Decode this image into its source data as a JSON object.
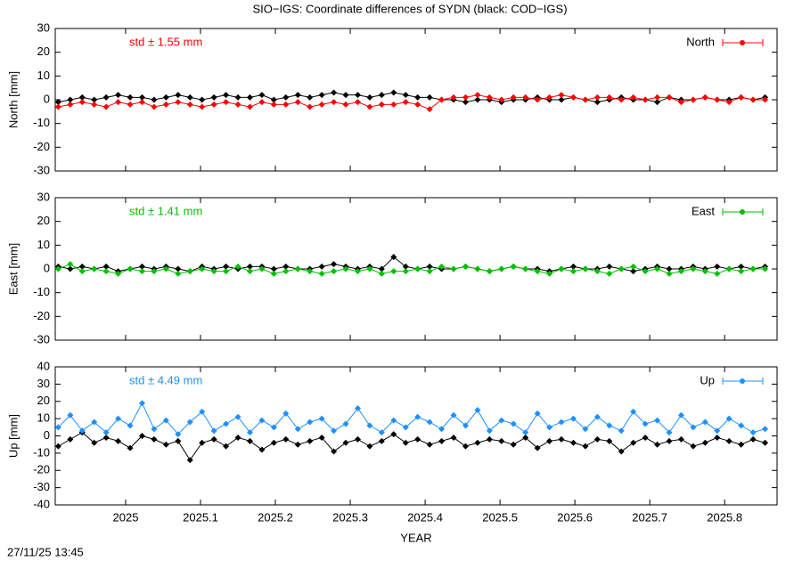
{
  "title": "SIO−IGS: Coordinate differences of SYDN (black: COD−IGS)",
  "footer": "27/11/25 13:45",
  "chart_data": [
    {
      "type": "line",
      "ylabel": "North [mm]",
      "annotation": "std ± 1.55 mm",
      "annotation_color": "#ff0000",
      "legend": "top-right",
      "xlim": [
        2024.906,
        2025.87
      ],
      "ylim": [
        -30,
        30
      ],
      "yticks": [
        -30,
        -20,
        -10,
        0,
        10,
        20,
        30
      ],
      "x": [
        2024.91,
        2024.926,
        2024.942,
        2024.958,
        2024.974,
        2024.99,
        2025.006,
        2025.022,
        2025.038,
        2025.054,
        2025.07,
        2025.086,
        2025.102,
        2025.118,
        2025.134,
        2025.15,
        2025.166,
        2025.182,
        2025.198,
        2025.214,
        2025.23,
        2025.246,
        2025.262,
        2025.278,
        2025.294,
        2025.31,
        2025.326,
        2025.342,
        2025.358,
        2025.374,
        2025.39,
        2025.406,
        2025.422,
        2025.438,
        2025.454,
        2025.47,
        2025.486,
        2025.502,
        2025.518,
        2025.534,
        2025.55,
        2025.566,
        2025.582,
        2025.598,
        2025.614,
        2025.63,
        2025.646,
        2025.662,
        2025.678,
        2025.694,
        2025.71,
        2025.726,
        2025.742,
        2025.758,
        2025.774,
        2025.79,
        2025.806,
        2025.822,
        2025.838,
        2025.854
      ],
      "series": [
        {
          "color": "#000000",
          "values": [
            -1,
            0,
            1,
            0,
            1,
            2,
            1,
            1,
            0,
            1,
            2,
            1,
            0,
            1,
            2,
            1,
            1,
            2,
            0,
            1,
            2,
            1,
            2,
            3,
            2,
            2,
            1,
            2,
            3,
            2,
            1,
            1,
            0,
            0,
            -1,
            0,
            0,
            -1,
            0,
            0,
            1,
            0,
            0,
            1,
            0,
            -1,
            0,
            1,
            0,
            0,
            -1,
            1,
            0,
            0,
            1,
            0,
            0,
            1,
            0,
            1
          ]
        },
        {
          "name": "North",
          "color": "#ff0000",
          "values": [
            -3,
            -2,
            -1,
            -2,
            -3,
            -1,
            -2,
            -1,
            -3,
            -2,
            -1,
            -2,
            -3,
            -2,
            -1,
            -2,
            -3,
            -1,
            -2,
            -2,
            -1,
            -3,
            -2,
            -1,
            -2,
            -1,
            -3,
            -2,
            -2,
            -1,
            -2,
            -4,
            0,
            1,
            1,
            2,
            1,
            0,
            1,
            1,
            0,
            1,
            2,
            1,
            0,
            1,
            1,
            0,
            1,
            0,
            1,
            1,
            -1,
            0,
            1,
            0,
            -1,
            1,
            0,
            0
          ]
        }
      ]
    },
    {
      "type": "line",
      "ylabel": "East [mm]",
      "annotation": "std ± 1.41 mm",
      "annotation_color": "#00c000",
      "legend": "top-right",
      "xlim": [
        2024.906,
        2025.87
      ],
      "ylim": [
        -30,
        30
      ],
      "yticks": [
        -30,
        -20,
        -10,
        0,
        10,
        20,
        30
      ],
      "x": [
        2024.91,
        2024.926,
        2024.942,
        2024.958,
        2024.974,
        2024.99,
        2025.006,
        2025.022,
        2025.038,
        2025.054,
        2025.07,
        2025.086,
        2025.102,
        2025.118,
        2025.134,
        2025.15,
        2025.166,
        2025.182,
        2025.198,
        2025.214,
        2025.23,
        2025.246,
        2025.262,
        2025.278,
        2025.294,
        2025.31,
        2025.326,
        2025.342,
        2025.358,
        2025.374,
        2025.39,
        2025.406,
        2025.422,
        2025.438,
        2025.454,
        2025.47,
        2025.486,
        2025.502,
        2025.518,
        2025.534,
        2025.55,
        2025.566,
        2025.582,
        2025.598,
        2025.614,
        2025.63,
        2025.646,
        2025.662,
        2025.678,
        2025.694,
        2025.71,
        2025.726,
        2025.742,
        2025.758,
        2025.774,
        2025.79,
        2025.806,
        2025.822,
        2025.838,
        2025.854
      ],
      "series": [
        {
          "color": "#000000",
          "values": [
            1,
            0,
            1,
            0,
            1,
            -1,
            0,
            1,
            0,
            1,
            0,
            -1,
            1,
            0,
            1,
            0,
            1,
            1,
            0,
            1,
            0,
            0,
            1,
            2,
            1,
            0,
            1,
            0,
            5,
            1,
            0,
            1,
            0,
            0,
            1,
            0,
            -1,
            0,
            1,
            0,
            0,
            -1,
            0,
            1,
            0,
            0,
            1,
            0,
            -1,
            0,
            1,
            0,
            0,
            1,
            0,
            1,
            0,
            1,
            0,
            1
          ]
        },
        {
          "name": "East",
          "color": "#00c000",
          "values": [
            0,
            2,
            -1,
            0,
            -1,
            -2,
            0,
            -1,
            -1,
            0,
            -2,
            -1,
            0,
            -1,
            -1,
            1,
            -1,
            0,
            -2,
            -1,
            0,
            -1,
            -2,
            -1,
            0,
            -1,
            0,
            -2,
            -1,
            -1,
            0,
            -1,
            1,
            0,
            1,
            0,
            -1,
            0,
            1,
            0,
            -1,
            -2,
            0,
            -1,
            0,
            -1,
            -2,
            0,
            1,
            -1,
            0,
            -2,
            -1,
            0,
            -1,
            -2,
            0,
            -1,
            0,
            0
          ]
        }
      ]
    },
    {
      "type": "line",
      "ylabel": "Up [mm]",
      "xlabel": "YEAR",
      "annotation": "std ± 4.49 mm",
      "annotation_color": "#1e90ff",
      "legend": "top-right",
      "xlim": [
        2024.906,
        2025.87
      ],
      "ylim": [
        -40,
        40
      ],
      "yticks": [
        -40,
        -30,
        -20,
        -10,
        0,
        10,
        20,
        30,
        40
      ],
      "xticks": [
        2025,
        2025.1,
        2025.2,
        2025.3,
        2025.4,
        2025.5,
        2025.6,
        2025.7,
        2025.8
      ],
      "x": [
        2024.91,
        2024.926,
        2024.942,
        2024.958,
        2024.974,
        2024.99,
        2025.006,
        2025.022,
        2025.038,
        2025.054,
        2025.07,
        2025.086,
        2025.102,
        2025.118,
        2025.134,
        2025.15,
        2025.166,
        2025.182,
        2025.198,
        2025.214,
        2025.23,
        2025.246,
        2025.262,
        2025.278,
        2025.294,
        2025.31,
        2025.326,
        2025.342,
        2025.358,
        2025.374,
        2025.39,
        2025.406,
        2025.422,
        2025.438,
        2025.454,
        2025.47,
        2025.486,
        2025.502,
        2025.518,
        2025.534,
        2025.55,
        2025.566,
        2025.582,
        2025.598,
        2025.614,
        2025.63,
        2025.646,
        2025.662,
        2025.678,
        2025.694,
        2025.71,
        2025.726,
        2025.742,
        2025.758,
        2025.774,
        2025.79,
        2025.806,
        2025.822,
        2025.838,
        2025.854
      ],
      "series": [
        {
          "color": "#000000",
          "values": [
            -6,
            -2,
            2,
            -4,
            -1,
            -3,
            -7,
            0,
            -2,
            -5,
            -3,
            -14,
            -4,
            -2,
            -6,
            -1,
            -3,
            -8,
            -4,
            -2,
            -5,
            -3,
            -1,
            -9,
            -4,
            -2,
            -6,
            -3,
            1,
            -4,
            -2,
            -5,
            -3,
            -1,
            -6,
            -4,
            -2,
            -3,
            -5,
            -1,
            -7,
            -3,
            -2,
            -4,
            -6,
            -2,
            -3,
            -9,
            -4,
            -1,
            -5,
            -3,
            -2,
            -6,
            -4,
            -1,
            -3,
            -5,
            -2,
            -4
          ]
        },
        {
          "name": "Up",
          "color": "#1e90ff",
          "values": [
            5,
            12,
            3,
            8,
            2,
            10,
            6,
            19,
            4,
            9,
            1,
            8,
            14,
            3,
            7,
            11,
            2,
            9,
            5,
            13,
            4,
            8,
            10,
            3,
            7,
            16,
            6,
            2,
            9,
            5,
            11,
            8,
            4,
            12,
            6,
            15,
            3,
            9,
            7,
            2,
            13,
            5,
            8,
            10,
            4,
            11,
            6,
            3,
            14,
            7,
            9,
            2,
            12,
            5,
            8,
            3,
            10,
            6,
            2,
            4
          ]
        }
      ]
    }
  ]
}
